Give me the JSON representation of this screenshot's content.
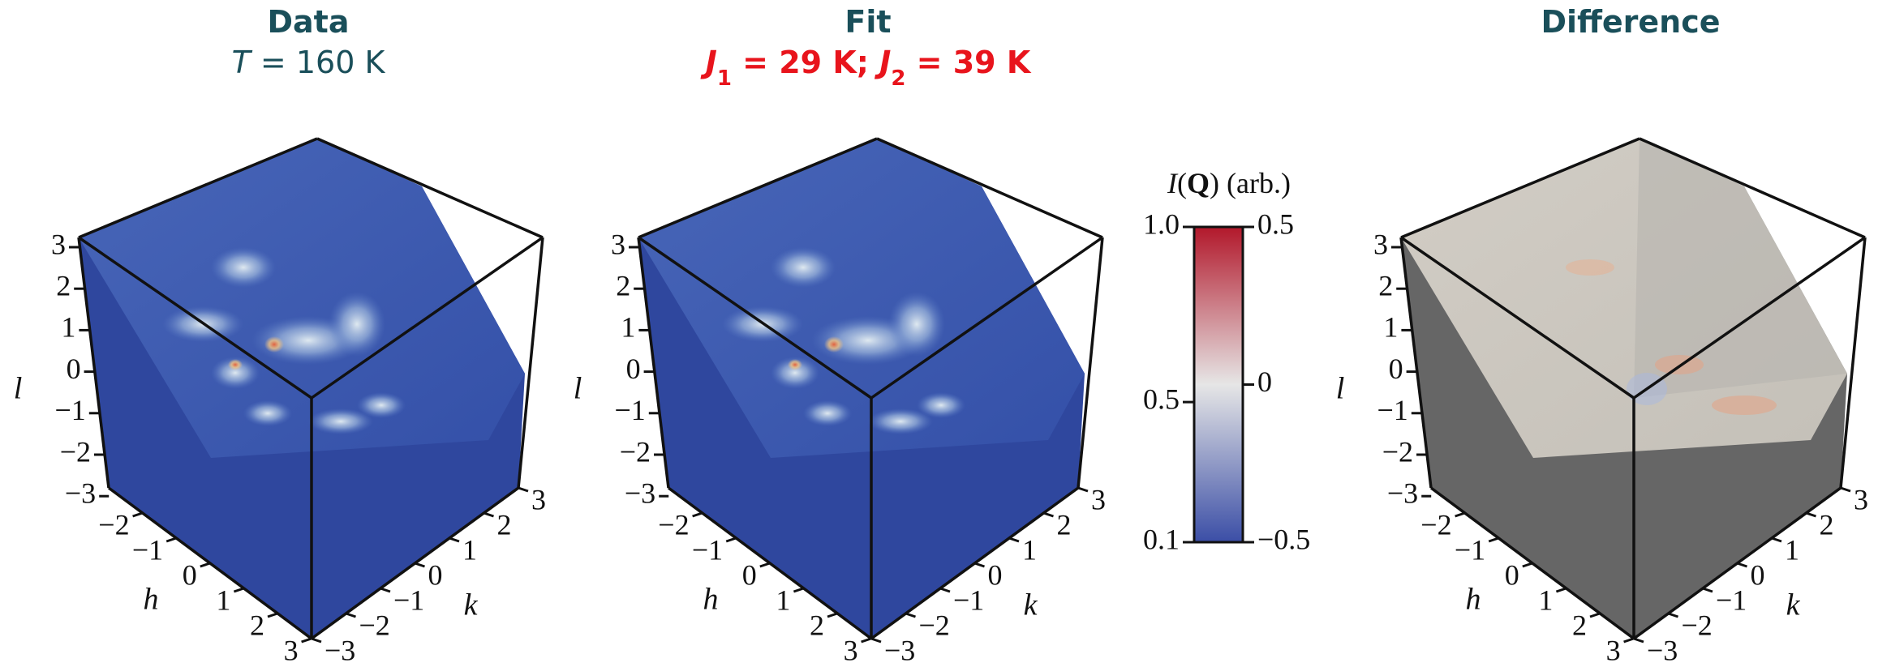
{
  "chart_data": [
    {
      "type": "volume",
      "title": "Data",
      "subtitle": [
        {
          "text": "T",
          "style": "italic"
        },
        {
          "text": " = 160 K",
          "style": "normal"
        }
      ],
      "subtitle_color": "#1a4f5a",
      "palette": "data",
      "xlabel": "h",
      "ylabel": "k",
      "zlabel": "l",
      "xticks": [
        {
          "value": -2,
          "label": "−2"
        },
        {
          "value": -1,
          "label": "−1"
        },
        0,
        1,
        2,
        3
      ],
      "yticks": [
        3,
        2,
        1,
        0,
        {
          "value": -1,
          "label": "−1"
        },
        {
          "value": -2,
          "label": "−2"
        },
        {
          "value": -3,
          "label": "−3"
        }
      ],
      "zticks": [
        3,
        2,
        1,
        0,
        {
          "value": -1,
          "label": "−1"
        },
        {
          "value": -2,
          "label": "−2"
        },
        {
          "value": -3,
          "label": "−3"
        }
      ]
    },
    {
      "type": "volume",
      "title": "Fit",
      "subtitle": [
        {
          "text": "J",
          "style": "italic"
        },
        {
          "text": "1",
          "style": "sub"
        },
        {
          "text": " = 29 K; ",
          "style": "normal"
        },
        {
          "text": "J",
          "style": "italic"
        },
        {
          "text": "2",
          "style": "sub"
        },
        {
          "text": " = 39 K",
          "style": "normal"
        }
      ],
      "subtitle_color": "#e8141c",
      "palette": "data",
      "xlabel": "h",
      "ylabel": "k",
      "zlabel": "l",
      "xticks": [
        {
          "value": -2,
          "label": "−2"
        },
        {
          "value": -1,
          "label": "−1"
        },
        0,
        1,
        2,
        3
      ],
      "yticks": [
        3,
        2,
        1,
        0,
        {
          "value": -1,
          "label": "−1"
        },
        {
          "value": -2,
          "label": "−2"
        },
        {
          "value": -3,
          "label": "−3"
        }
      ],
      "zticks": [
        3,
        2,
        1,
        0,
        {
          "value": -1,
          "label": "−1"
        },
        {
          "value": -2,
          "label": "−2"
        },
        {
          "value": -3,
          "label": "−3"
        }
      ]
    },
    {
      "type": "colorbar",
      "label": [
        {
          "text": "I",
          "style": "italic"
        },
        {
          "text": "(",
          "style": "normal"
        },
        {
          "text": "Q",
          "style": "bold"
        },
        {
          "text": ") (arb.)",
          "style": "normal"
        }
      ],
      "colors": [
        "#3b4ea6",
        "#e6e6e6",
        "#b2182b"
      ],
      "ylim": [
        0.1,
        1.0
      ],
      "yticks": [
        {
          "value": 1.0,
          "label": "1.0"
        },
        0.5,
        0.1
      ],
      "y2lim": [
        -0.5,
        0.5
      ],
      "y2ticks": [
        0.5,
        0,
        {
          "value": -0.5,
          "label": "−0.5"
        }
      ]
    },
    {
      "type": "volume",
      "title": "Difference",
      "palette": "difference",
      "xlabel": "h",
      "ylabel": "k",
      "zlabel": "l",
      "xticks": [
        {
          "value": -2,
          "label": "−2"
        },
        {
          "value": -1,
          "label": "−1"
        },
        0,
        1,
        2,
        3
      ],
      "yticks": [
        3,
        2,
        1,
        0,
        {
          "value": -1,
          "label": "−1"
        },
        {
          "value": -2,
          "label": "−2"
        },
        {
          "value": -3,
          "label": "−3"
        }
      ],
      "zticks": [
        3,
        2,
        1,
        0,
        {
          "value": -1,
          "label": "−1"
        },
        {
          "value": -2,
          "label": "−2"
        },
        {
          "value": -3,
          "label": "−3"
        }
      ]
    }
  ]
}
